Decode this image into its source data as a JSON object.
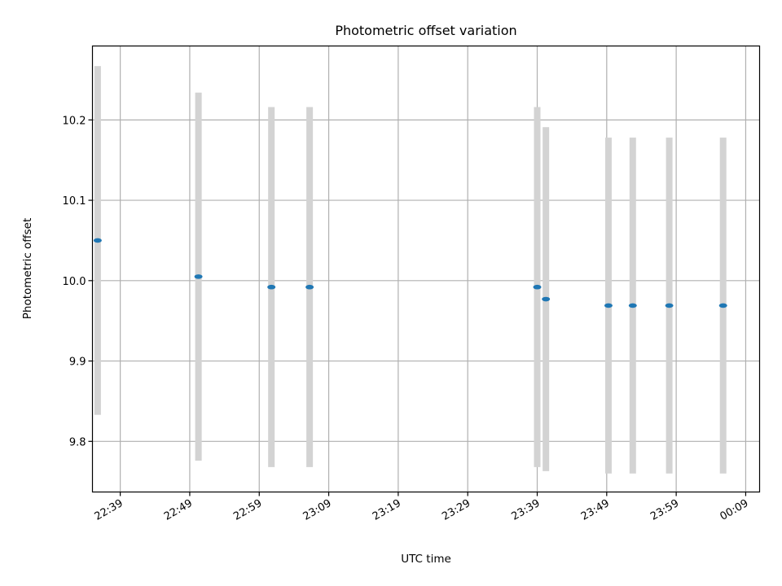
{
  "chart_data": {
    "type": "scatter",
    "title": "Photometric offset variation",
    "xlabel": "UTC time",
    "ylabel": "Photometric offset",
    "x_axis": {
      "kind": "time",
      "range": [
        "22:35:00",
        "00:11:00"
      ],
      "ticks": [
        "22:39",
        "22:49",
        "22:59",
        "23:09",
        "23:19",
        "23:29",
        "23:39",
        "23:49",
        "23:59",
        "00:09"
      ]
    },
    "y_axis": {
      "range": [
        9.737,
        10.292
      ],
      "ticks": [
        "9.8",
        "9.9",
        "10.0",
        "10.1",
        "10.2"
      ]
    },
    "grid": true,
    "points": [
      {
        "time": "22:35:45",
        "offset": 10.05,
        "error": 0.217
      },
      {
        "time": "22:50:15",
        "offset": 10.005,
        "error": 0.229
      },
      {
        "time": "23:00:45",
        "offset": 9.992,
        "error": 0.224
      },
      {
        "time": "23:06:15",
        "offset": 9.992,
        "error": 0.224
      },
      {
        "time": "23:39:00",
        "offset": 9.992,
        "error": 0.224
      },
      {
        "time": "23:40:15",
        "offset": 9.977,
        "error": 0.214
      },
      {
        "time": "23:49:15",
        "offset": 9.969,
        "error": 0.209
      },
      {
        "time": "23:52:45",
        "offset": 9.969,
        "error": 0.209
      },
      {
        "time": "23:58:00",
        "offset": 9.969,
        "error": 0.209
      },
      {
        "time": "00:05:45",
        "offset": 9.969,
        "error": 0.209
      }
    ],
    "colors": {
      "points": "#1f77b4",
      "errorbars": "#d3d3d3",
      "grid": "#b0b0b0"
    }
  }
}
